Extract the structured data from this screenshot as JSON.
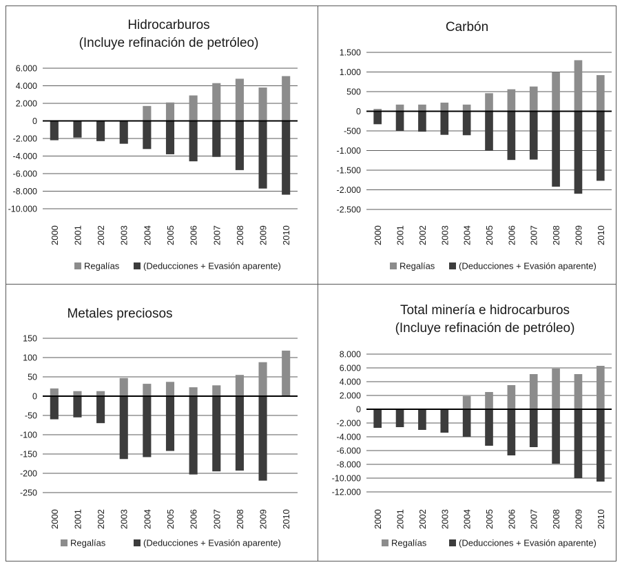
{
  "colors": {
    "regalias": "#8c8c8c",
    "deducciones": "#3c3c3c",
    "grid": "#5a5a5a",
    "axis": "#000000"
  },
  "chart_data": [
    {
      "type": "bar",
      "title": [
        "Hidrocarburos",
        "(Incluye refinación de petróleo)"
      ],
      "categories": [
        "2000",
        "2001",
        "2002",
        "2003",
        "2004",
        "2005",
        "2006",
        "2007",
        "2008",
        "2009",
        "2010"
      ],
      "ylim": [
        -10000,
        6000
      ],
      "yticks": [
        6000,
        4000,
        2000,
        0,
        -2000,
        -4000,
        -6000,
        -8000,
        -10000
      ],
      "ytick_labels": [
        "6.000",
        "4.000",
        "2.000",
        "0",
        "-2.000",
        "-4.000",
        "-6.000",
        "-8.000",
        "-10.000"
      ],
      "grid": true,
      "legend_position": "bottom",
      "series": [
        {
          "name": "Regalías",
          "color_key": "regalias",
          "values": [
            0,
            0,
            0,
            0,
            1700,
            2100,
            2900,
            4300,
            4800,
            3800,
            5100
          ]
        },
        {
          "name": "(Deducciones + Evasión aparente)",
          "color_key": "deducciones",
          "values": [
            -2200,
            -1900,
            -2300,
            -2600,
            -3200,
            -3800,
            -4600,
            -4100,
            -5600,
            -7700,
            -8400
          ]
        }
      ]
    },
    {
      "type": "bar",
      "title": [
        "Carbón"
      ],
      "categories": [
        "2000",
        "2001",
        "2002",
        "2003",
        "2004",
        "2005",
        "2006",
        "2007",
        "2008",
        "2009",
        "2010"
      ],
      "ylim": [
        -2500,
        1500
      ],
      "yticks": [
        1500,
        1000,
        500,
        0,
        -500,
        -1000,
        -1500,
        -2000,
        -2500
      ],
      "ytick_labels": [
        "1.500",
        "1.000",
        "500",
        "0",
        "-500",
        "-1.000",
        "-1.500",
        "-2.000",
        "-2.500"
      ],
      "grid": true,
      "legend_position": "bottom",
      "series": [
        {
          "name": "Regalías",
          "color_key": "regalias",
          "values": [
            60,
            170,
            170,
            220,
            170,
            460,
            560,
            630,
            1000,
            1300,
            920
          ]
        },
        {
          "name": "(Deducciones + Evasión aparente)",
          "color_key": "deducciones",
          "values": [
            -330,
            -500,
            -520,
            -600,
            -610,
            -1000,
            -1240,
            -1230,
            -1920,
            -2100,
            -1770
          ]
        }
      ]
    },
    {
      "type": "bar",
      "title": [
        "Metales preciosos"
      ],
      "categories": [
        "2000",
        "2001",
        "2002",
        "2003",
        "2004",
        "2005",
        "2006",
        "2007",
        "2008",
        "2009",
        "2010"
      ],
      "ylim": [
        -250,
        150
      ],
      "yticks": [
        150,
        100,
        50,
        0,
        -50,
        -100,
        -150,
        -200,
        -250
      ],
      "ytick_labels": [
        "150",
        "100",
        "50",
        "0",
        "-50",
        "-100",
        "-150",
        "-200",
        "-250"
      ],
      "grid": true,
      "legend_position": "bottom",
      "series": [
        {
          "name": "Regalías",
          "color_key": "regalias",
          "values": [
            20,
            13,
            13,
            47,
            32,
            37,
            23,
            28,
            55,
            88,
            118
          ]
        },
        {
          "name": "(Deducciones + Evasión aparente)",
          "color_key": "deducciones",
          "values": [
            -60,
            -55,
            -70,
            -163,
            -158,
            -142,
            -203,
            -195,
            -193,
            -219,
            0
          ]
        }
      ]
    },
    {
      "type": "bar",
      "title": [
        "Total minería e hidrocarburos",
        "(Incluye refinación de petróleo)"
      ],
      "categories": [
        "2000",
        "2001",
        "2002",
        "2003",
        "2004",
        "2005",
        "2006",
        "2007",
        "2008",
        "2009",
        "2010"
      ],
      "ylim": [
        -12000,
        8000
      ],
      "yticks": [
        8000,
        6000,
        4000,
        2000,
        0,
        -2000,
        -4000,
        -6000,
        -8000,
        -10000,
        -12000
      ],
      "ytick_labels": [
        "8.000",
        "6.000",
        "4.000",
        "2.000",
        "0",
        "-2.000",
        "-4.000",
        "-6.000",
        "-8.000",
        "-10.000",
        "-12.000"
      ],
      "grid": true,
      "legend_position": "bottom",
      "series": [
        {
          "name": "Regalías",
          "color_key": "regalias",
          "values": [
            0,
            0,
            0,
            0,
            1900,
            2500,
            3500,
            5100,
            5900,
            5100,
            6300
          ]
        },
        {
          "name": "(Deducciones + Evasión aparente)",
          "color_key": "deducciones",
          "values": [
            -2700,
            -2600,
            -3000,
            -3400,
            -4000,
            -5300,
            -6700,
            -5500,
            -7900,
            -10000,
            -10500
          ]
        }
      ]
    }
  ]
}
